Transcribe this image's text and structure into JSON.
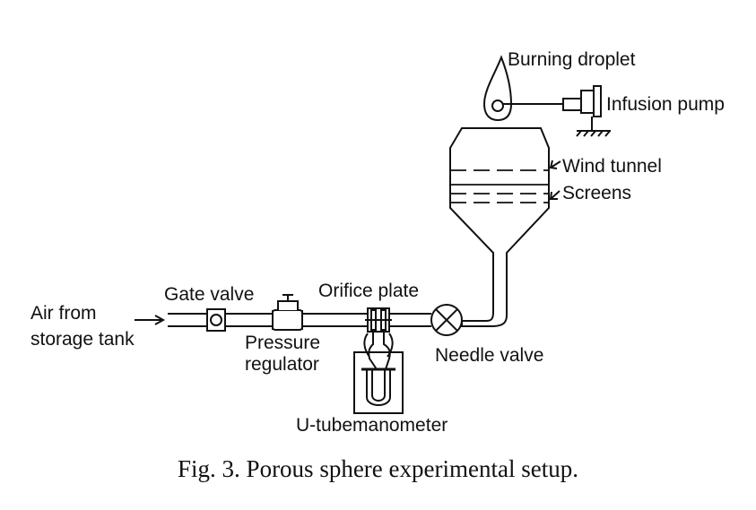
{
  "diagram": {
    "labels": {
      "burning_droplet": "Burning droplet",
      "infusion_pump": "Infusion pump",
      "wind_tunnel": "Wind tunnel",
      "screens": "Screens",
      "air_from": "Air from",
      "storage_tank": "storage tank",
      "gate_valve": "Gate valve",
      "pressure": "Pressure",
      "regulator": "regulator",
      "orifice_plate": "Orifice plate",
      "needle_valve": "Needle valve",
      "u_tube_manometer": "U-tubemanometer"
    },
    "caption": "Fig. 3.  Porous sphere experimental setup."
  }
}
